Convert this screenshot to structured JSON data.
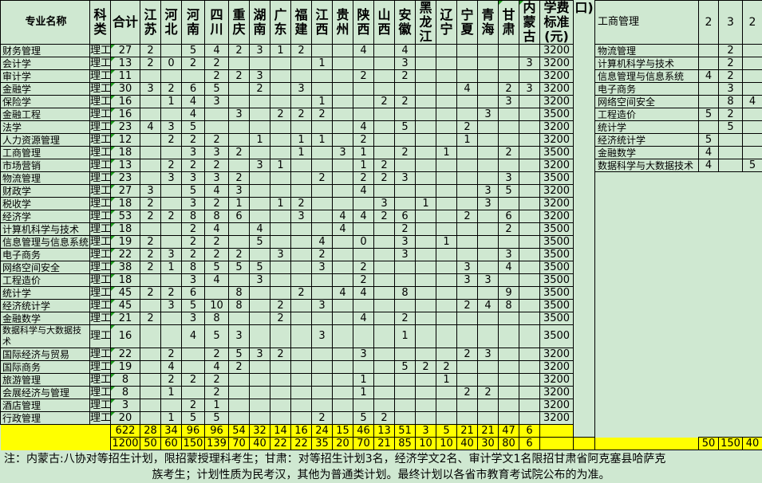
{
  "headers": {
    "name": "专业名称",
    "type": "科类",
    "total": "合计",
    "provinces": [
      "江苏",
      "河北",
      "河南",
      "四川",
      "重庆",
      "湖南",
      "广东",
      "福建",
      "江西",
      "贵州",
      "陕西",
      "山西",
      "安徽",
      "黑龙江",
      "辽宁",
      "宁夏",
      "青海",
      "甘肃",
      "内蒙古"
    ],
    "fee": "学费标准(元)",
    "extra": "口)"
  },
  "rows": [
    {
      "name": "财务管理",
      "type": "理工",
      "total": "27",
      "v": [
        "2",
        "",
        "5",
        "4",
        "2",
        "3",
        "1",
        "2",
        "",
        "",
        "4",
        "",
        "4",
        "",
        "",
        "",
        "",
        "",
        ""
      ],
      "fee": "3200"
    },
    {
      "name": "会计学",
      "type": "理工",
      "total": "13",
      "v": [
        "2",
        "0",
        "2",
        "2",
        "",
        "",
        "",
        "",
        "1",
        "",
        "",
        "",
        "3",
        "",
        "",
        "",
        "",
        "",
        "3"
      ],
      "fee": "3200"
    },
    {
      "name": "审计学",
      "type": "理工",
      "total": "11",
      "v": [
        "",
        "",
        "",
        "2",
        "2",
        "3",
        "",
        "",
        "",
        "",
        "2",
        "",
        "2",
        "",
        "",
        "",
        "",
        "",
        ""
      ],
      "fee": "3200"
    },
    {
      "name": "金融学",
      "type": "理工",
      "total": "30",
      "v": [
        "3",
        "2",
        "6",
        "5",
        "",
        "2",
        "",
        "3",
        "",
        "",
        "",
        "",
        "",
        "",
        "",
        "4",
        "",
        "2",
        "3"
      ],
      "fee": "3200"
    },
    {
      "name": "保险学",
      "type": "理工",
      "total": "16",
      "v": [
        "",
        "1",
        "4",
        "3",
        "",
        "",
        "",
        "",
        "1",
        "",
        "",
        "2",
        "2",
        "",
        "",
        "",
        "",
        "3",
        ""
      ],
      "fee": "3200"
    },
    {
      "name": "金融工程",
      "type": "理工",
      "total": "16",
      "v": [
        "",
        "",
        "4",
        "",
        "3",
        "",
        "2",
        "2",
        "2",
        "",
        "",
        "",
        "",
        "",
        "",
        "",
        "3",
        "",
        ""
      ],
      "fee": "3500"
    },
    {
      "name": "法学",
      "type": "理工",
      "total": "23",
      "v": [
        "4",
        "3",
        "5",
        "",
        "",
        "",
        "",
        "",
        "",
        "",
        "4",
        "",
        "5",
        "",
        "",
        "2",
        "",
        "",
        ""
      ],
      "fee": "3200"
    },
    {
      "name": "人力资源管理",
      "type": "理工",
      "total": "12",
      "v": [
        "",
        "2",
        "2",
        "2",
        "",
        "1",
        "",
        "1",
        "1",
        "",
        "2",
        "",
        "",
        "",
        "",
        "1",
        "",
        "",
        ""
      ],
      "fee": "3200"
    },
    {
      "name": "工商管理",
      "type": "理工",
      "total": "18",
      "v": [
        "",
        "",
        "3",
        "3",
        "2",
        "",
        "",
        "1",
        "",
        "3",
        "1",
        "",
        "2",
        "",
        "1",
        "",
        "",
        "2",
        ""
      ],
      "fee": "3500"
    },
    {
      "name": "市场营销",
      "type": "理工",
      "total": "13",
      "v": [
        "",
        "2",
        "2",
        "2",
        "",
        "3",
        "1",
        "",
        "",
        "",
        "1",
        "2",
        "",
        "",
        "",
        "",
        "",
        "",
        ""
      ],
      "fee": "3200"
    },
    {
      "name": "物流管理",
      "type": "理工",
      "total": "23",
      "v": [
        "",
        "3",
        "3",
        "3",
        "2",
        "",
        "",
        "",
        "2",
        "",
        "2",
        "2",
        "3",
        "",
        "",
        "",
        "",
        "3",
        ""
      ],
      "fee": "3500"
    },
    {
      "name": "财政学",
      "type": "理工",
      "total": "27",
      "v": [
        "3",
        "",
        "5",
        "4",
        "3",
        "",
        "",
        "",
        "",
        "",
        "4",
        "",
        "",
        "",
        "",
        "",
        "3",
        "5",
        ""
      ],
      "fee": "3200"
    },
    {
      "name": "税收学",
      "type": "理工",
      "total": "18",
      "v": [
        "2",
        "",
        "3",
        "2",
        "1",
        "",
        "1",
        "2",
        "",
        "",
        "",
        "3",
        "",
        "1",
        "",
        "",
        "3",
        "",
        ""
      ],
      "fee": "3200"
    },
    {
      "name": "经济学",
      "type": "理工",
      "total": "53",
      "v": [
        "2",
        "2",
        "8",
        "8",
        "6",
        "",
        "",
        "3",
        "",
        "4",
        "4",
        "2",
        "6",
        "",
        "",
        "2",
        "",
        "6",
        ""
      ],
      "fee": "3200"
    },
    {
      "name": "计算机科学与技术",
      "type": "理工",
      "total": "18",
      "v": [
        "",
        "",
        "2",
        "4",
        "",
        "4",
        "",
        "",
        "",
        "4",
        "",
        "",
        "2",
        "",
        "",
        "",
        "",
        "2",
        ""
      ],
      "fee": "3500"
    },
    {
      "name": "信息管理与信息系统",
      "type": "理工",
      "total": "19",
      "v": [
        "2",
        "",
        "2",
        "2",
        "",
        "5",
        "",
        "",
        "4",
        "",
        "0",
        "",
        "3",
        "",
        "1",
        "",
        "",
        "",
        ""
      ],
      "fee": "3500"
    },
    {
      "name": "电子商务",
      "type": "理工",
      "total": "22",
      "v": [
        "2",
        "3",
        "2",
        "2",
        "2",
        "",
        "3",
        "",
        "2",
        "",
        "",
        "",
        "3",
        "",
        "",
        "",
        "",
        "3",
        ""
      ],
      "fee": "3500"
    },
    {
      "name": "网络空间安全",
      "type": "理工",
      "total": "38",
      "v": [
        "2",
        "1",
        "8",
        "5",
        "5",
        "5",
        "",
        "",
        "3",
        "",
        "2",
        "",
        "",
        "",
        "",
        "3",
        "",
        "4",
        ""
      ],
      "fee": "3500"
    },
    {
      "name": "工程造价",
      "type": "理工",
      "total": "18",
      "v": [
        "",
        "",
        "3",
        "4",
        "",
        "3",
        "",
        "",
        "",
        "",
        "2",
        "",
        "",
        "",
        "",
        "3",
        "3",
        "",
        ""
      ],
      "fee": "3500"
    },
    {
      "name": "统计学",
      "type": "理工",
      "total": "45",
      "v": [
        "2",
        "2",
        "6",
        "",
        "8",
        "",
        "",
        "2",
        "",
        "4",
        "4",
        "",
        "8",
        "",
        "",
        "",
        "",
        "9",
        ""
      ],
      "fee": "3500"
    },
    {
      "name": "经济统计学",
      "type": "理工",
      "total": "45",
      "v": [
        "",
        "3",
        "5",
        "10",
        "8",
        "",
        "2",
        "",
        "3",
        "",
        "",
        "",
        "",
        "",
        "",
        "2",
        "4",
        "8",
        ""
      ],
      "fee": "3500"
    },
    {
      "name": "金融数学",
      "type": "理工",
      "total": "21",
      "v": [
        "2",
        "",
        "3",
        "8",
        "",
        "",
        "2",
        "",
        "",
        "",
        "4",
        "",
        "2",
        "",
        "",
        "",
        "",
        "",
        ""
      ],
      "fee": "3500"
    },
    {
      "name": "数据科学与大数据技术",
      "type": "理工",
      "total": "16",
      "v": [
        "",
        "",
        "4",
        "5",
        "3",
        "",
        "",
        "",
        "3",
        "",
        "",
        "",
        "1",
        "",
        "",
        "",
        "",
        "",
        ""
      ],
      "fee": "3500"
    },
    {
      "name": "国际经济与贸易",
      "type": "理工",
      "total": "22",
      "v": [
        "",
        "2",
        "",
        "2",
        "5",
        "3",
        "2",
        "",
        "",
        "",
        "3",
        "",
        "",
        "",
        "",
        "2",
        "3",
        "",
        ""
      ],
      "fee": "3200"
    },
    {
      "name": "国际商务",
      "type": "理工",
      "total": "19",
      "v": [
        "",
        "4",
        "",
        "4",
        "2",
        "",
        "",
        "",
        "",
        "",
        "",
        "",
        "5",
        "2",
        "2",
        "",
        "",
        "",
        ""
      ],
      "fee": "3200"
    },
    {
      "name": "旅游管理",
      "type": "理工",
      "total": "8",
      "v": [
        "",
        "2",
        "2",
        "2",
        "",
        "",
        "",
        "",
        "",
        "",
        "1",
        "",
        "",
        "",
        "1",
        "",
        "",
        "",
        ""
      ],
      "fee": "3200"
    },
    {
      "name": "会展经济与管理",
      "type": "理工",
      "total": "8",
      "v": [
        "",
        "1",
        "",
        "2",
        "",
        "",
        "",
        "",
        "",
        "",
        "1",
        "",
        "",
        "",
        "",
        "2",
        "2",
        "",
        ""
      ],
      "fee": "3200"
    },
    {
      "name": "酒店管理",
      "type": "理工",
      "total": "3",
      "v": [
        "",
        "",
        "2",
        "1",
        "",
        "",
        "",
        "",
        "",
        "",
        "",
        "",
        "",
        "",
        "",
        "",
        "",
        "",
        ""
      ],
      "fee": "3200"
    },
    {
      "name": "行政管理",
      "type": "理工",
      "total": "20",
      "v": [
        "",
        "1",
        "5",
        "5",
        "",
        "",
        "",
        "",
        "2",
        "",
        "5",
        "2",
        "",
        "",
        "",
        "",
        "",
        "",
        ""
      ],
      "fee": "3200"
    }
  ],
  "totals": {
    "row1": {
      "total": "622",
      "v": [
        "28",
        "34",
        "96",
        "96",
        "54",
        "32",
        "14",
        "16",
        "24",
        "15",
        "46",
        "13",
        "51",
        "3",
        "5",
        "21",
        "21",
        "47",
        "6"
      ]
    },
    "row2": {
      "total": "1200",
      "v": [
        "50",
        "60",
        "150",
        "139",
        "70",
        "40",
        "22",
        "22",
        "35",
        "20",
        "70",
        "21",
        "85",
        "10",
        "10",
        "40",
        "30",
        "80",
        "6"
      ],
      "right": [
        "50",
        "150",
        "40"
      ]
    }
  },
  "right_panel": {
    "header": {
      "name": "工商管理",
      "v": [
        "2",
        "3",
        "2"
      ]
    },
    "rows": [
      {
        "name": "物流管理",
        "v": [
          "",
          "2",
          ""
        ]
      },
      {
        "name": "计算机科学与技术",
        "v": [
          "",
          "2",
          ""
        ]
      },
      {
        "name": "信息管理与信息系统",
        "v": [
          "4",
          "2",
          ""
        ]
      },
      {
        "name": "电子商务",
        "v": [
          "",
          "3",
          ""
        ]
      },
      {
        "name": "网络空间安全",
        "v": [
          "",
          "8",
          "4"
        ]
      },
      {
        "name": "工程造价",
        "v": [
          "5",
          "2",
          ""
        ]
      },
      {
        "name": "统计学",
        "v": [
          "",
          "5",
          ""
        ]
      },
      {
        "name": "经济统计学",
        "v": [
          "5",
          "",
          ""
        ]
      },
      {
        "name": "金融数学",
        "v": [
          "4",
          "",
          ""
        ]
      },
      {
        "name": "数据科学与大数据技术",
        "v": [
          "4",
          "",
          "5"
        ]
      }
    ]
  },
  "note": {
    "line1": "注：内蒙古:八协对等招生计划，限招蒙授理科考生；甘肃：对等招生计划3名，经济学文2名、审计学文1名限招甘肃省阿克塞县哈萨克",
    "line2": "族考生；计划性质为民考汉，其他为普通类计划。最终计划以各省市教育考试院公布的为准。"
  },
  "colors": {
    "background": "#cfe8d1",
    "totals": "#ffff00",
    "text_marker": "#1d9a1d"
  }
}
